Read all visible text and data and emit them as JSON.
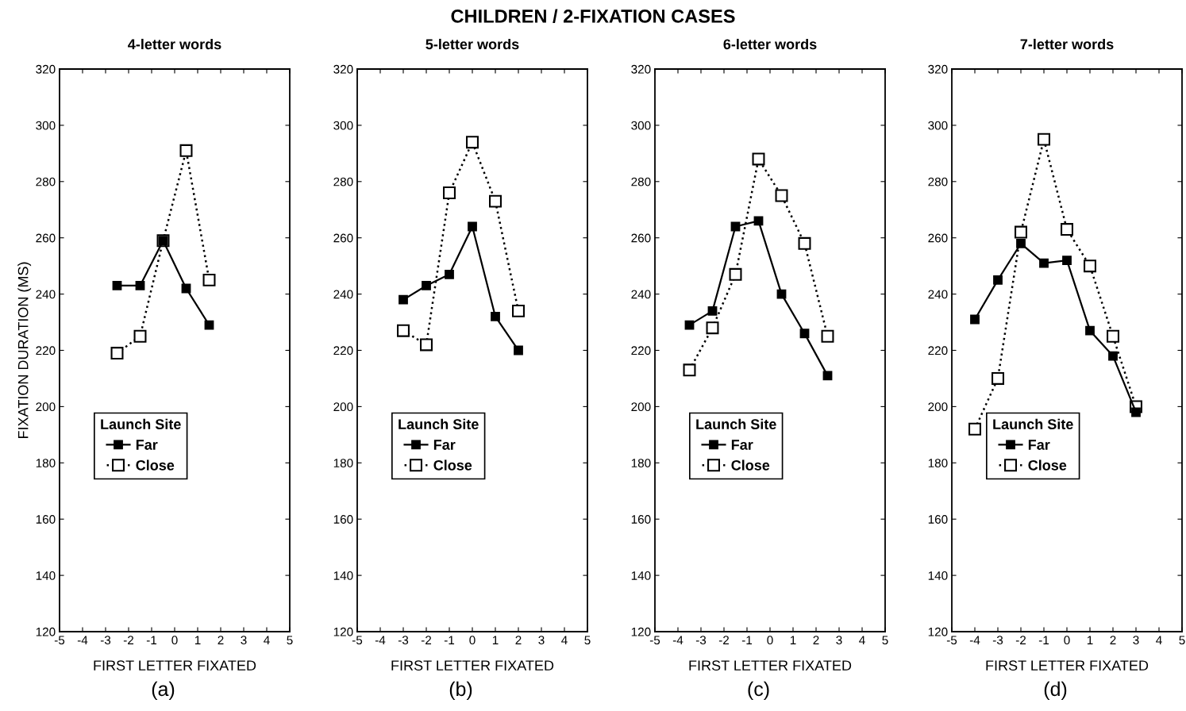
{
  "chart_data": [
    {
      "type": "line",
      "title": "4-letter words",
      "xlabel": "FIRST LETTER FIXATED",
      "ylabel": "FIXATION DURATION (MS)",
      "annotations": [
        "CHILDREN / 2-FIXATION CASES",
        "(a)"
      ],
      "legend_title": "Launch Site",
      "legend": "left",
      "marker": "square",
      "x": [
        -2.5,
        -1.5,
        -0.5,
        0.5,
        1.5
      ],
      "xlim": [
        -5,
        5
      ],
      "xticks": [
        -5,
        -4,
        -3,
        -2,
        -1,
        0,
        1,
        2,
        3,
        4,
        5
      ],
      "ylim": [
        120,
        320
      ],
      "yticks": [
        120,
        140,
        160,
        180,
        200,
        220,
        240,
        260,
        280,
        300,
        320
      ],
      "series": [
        {
          "name": "Far",
          "color": "#000000",
          "line_style": "solid",
          "values": [
            243,
            243,
            259,
            242,
            229
          ]
        },
        {
          "name": "Close",
          "color": "#000000",
          "line_style": "dotted",
          "values": [
            219,
            225,
            259,
            291,
            245
          ]
        }
      ]
    },
    {
      "type": "line",
      "title": "5-letter words",
      "xlabel": "FIRST LETTER FIXATED",
      "annotations": [
        "(b)"
      ],
      "legend_title": "Launch Site",
      "legend": "left",
      "marker": "square",
      "x": [
        -3,
        -2,
        -1,
        0,
        1,
        2
      ],
      "xlim": [
        -5,
        5
      ],
      "xticks": [
        -5,
        -4,
        -3,
        -2,
        -1,
        0,
        1,
        2,
        3,
        4,
        5
      ],
      "ylim": [
        120,
        320
      ],
      "yticks": [
        120,
        140,
        160,
        180,
        200,
        220,
        240,
        260,
        280,
        300,
        320
      ],
      "series": [
        {
          "name": "Far",
          "color": "#000000",
          "line_style": "solid",
          "values": [
            238,
            243,
            247,
            264,
            232,
            220
          ]
        },
        {
          "name": "Close",
          "color": "#000000",
          "line_style": "dotted",
          "values": [
            227,
            222,
            276,
            294,
            273,
            234
          ]
        }
      ]
    },
    {
      "type": "line",
      "title": "6-letter words",
      "xlabel": "FIRST LETTER FIXATED",
      "annotations": [
        "(c)"
      ],
      "legend_title": "Launch Site",
      "legend": "left",
      "marker": "square",
      "x": [
        -3.5,
        -2.5,
        -1.5,
        -0.5,
        0.5,
        1.5,
        2.5
      ],
      "xlim": [
        -5,
        5
      ],
      "xticks": [
        -5,
        -4,
        -3,
        -2,
        -1,
        0,
        1,
        2,
        3,
        4,
        5
      ],
      "ylim": [
        120,
        320
      ],
      "yticks": [
        120,
        140,
        160,
        180,
        200,
        220,
        240,
        260,
        280,
        300,
        320
      ],
      "series": [
        {
          "name": "Far",
          "color": "#000000",
          "line_style": "solid",
          "values": [
            229,
            234,
            264,
            266,
            240,
            226,
            211
          ]
        },
        {
          "name": "Close",
          "color": "#000000",
          "line_style": "dotted",
          "values": [
            213,
            228,
            247,
            288,
            275,
            258,
            225
          ]
        }
      ]
    },
    {
      "type": "line",
      "title": "7-letter words",
      "xlabel": "FIRST LETTER FIXATED",
      "annotations": [
        "(d)"
      ],
      "legend_title": "Launch Site",
      "legend": "left",
      "marker": "square",
      "x": [
        -4,
        -3,
        -2,
        -1,
        0,
        1,
        2,
        3
      ],
      "xlim": [
        -5,
        5
      ],
      "xticks": [
        -5,
        -4,
        -3,
        -2,
        -1,
        0,
        1,
        2,
        3,
        4,
        5
      ],
      "ylim": [
        120,
        320
      ],
      "yticks": [
        120,
        140,
        160,
        180,
        200,
        220,
        240,
        260,
        280,
        300,
        320
      ],
      "series": [
        {
          "name": "Far",
          "color": "#000000",
          "line_style": "solid",
          "values": [
            231,
            245,
            258,
            251,
            252,
            227,
            218,
            198
          ]
        },
        {
          "name": "Close",
          "color": "#000000",
          "line_style": "dotted",
          "values": [
            192,
            210,
            262,
            295,
            263,
            250,
            225,
            200
          ]
        }
      ]
    }
  ]
}
